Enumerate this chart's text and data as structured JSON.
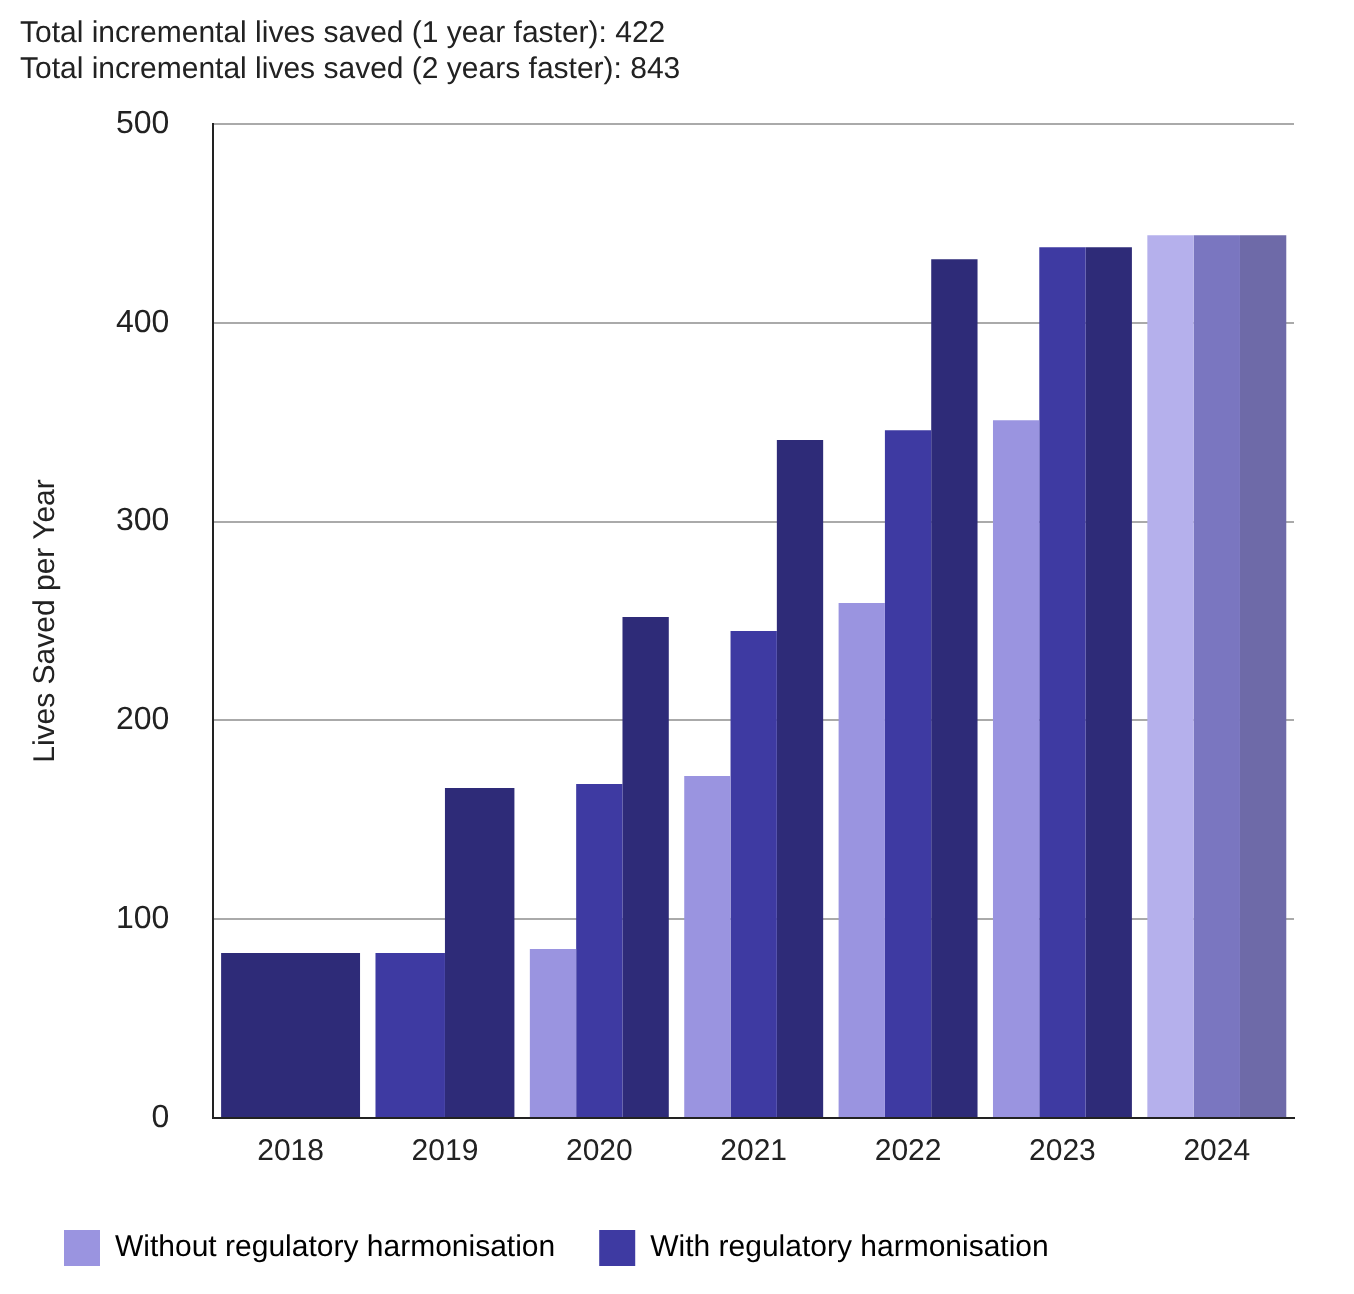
{
  "chart_data": {
    "type": "bar",
    "title": "Total incremental lives saved (1 year faster): 422",
    "subtitle": "Total incremental lives saved (2 years faster): 843",
    "ylabel": "Lives Saved per Year",
    "categories": [
      "2018",
      "2019",
      "2020",
      "2021",
      "2022",
      "2023",
      "2024"
    ],
    "series": [
      {
        "name": "Without regulatory harmonisation",
        "color": "#9a94e0",
        "colors": [
          "#9a94e0",
          "#9a94e0",
          "#9a94e0",
          "#9a94e0",
          "#9a94e0",
          "#9a94e0",
          "#b5b0ec"
        ],
        "values": [
          null,
          null,
          85,
          172,
          259,
          351,
          444
        ]
      },
      {
        "name": "With regulatory harmonisation",
        "color": "#3e3aa2",
        "colors": [
          "#3e3aa2",
          "#3e3aa2",
          "#3e3aa2",
          "#3e3aa2",
          "#3e3aa2",
          "#3e3aa2",
          "#7a76c0"
        ],
        "values": [
          null,
          83,
          168,
          245,
          346,
          438,
          444
        ]
      },
      {
        "color": "#2e2b78",
        "colors": [
          "#2e2b78",
          "#2e2b78",
          "#2e2b78",
          "#2e2b78",
          "#2e2b78",
          "#2e2b78",
          "#6e6aa8"
        ],
        "values": [
          83,
          166,
          252,
          341,
          432,
          438,
          444
        ]
      }
    ],
    "ylim": [
      0,
      500
    ],
    "yticks": [
      0,
      100,
      200,
      300,
      400,
      500
    ],
    "grid": "y",
    "legend": "bottom left"
  }
}
